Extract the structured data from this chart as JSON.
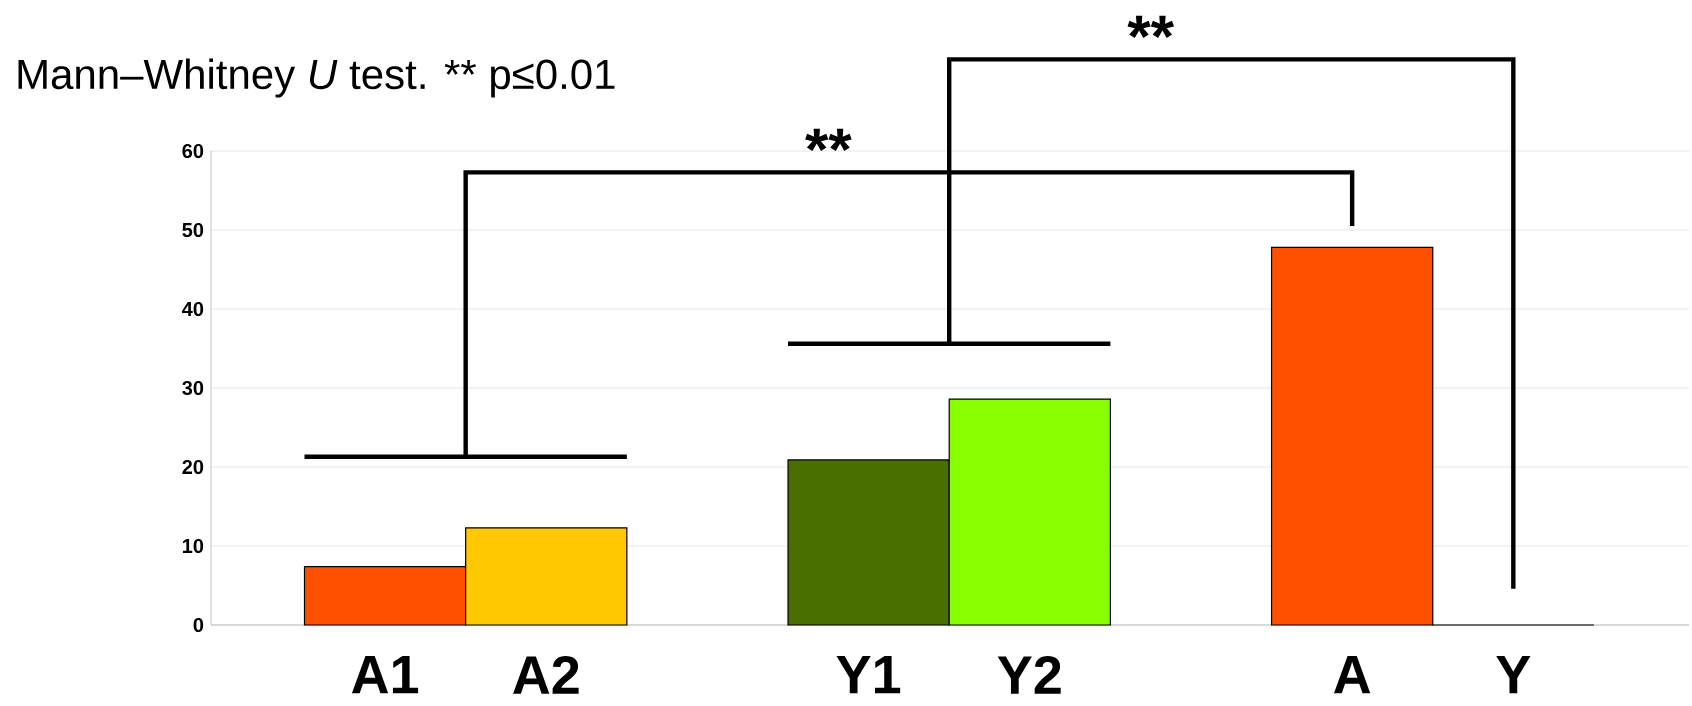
{
  "chart_data": {
    "type": "bar",
    "title": "Mann–Whitney *U* test. ** p≤0.01",
    "categories": [
      "A1",
      "A2",
      null,
      "Y1",
      "Y2",
      null,
      "A",
      "Y"
    ],
    "values": [
      7.4,
      12.3,
      null,
      20.9,
      28.6,
      null,
      47.8,
      0
    ],
    "colors": [
      "#ff5000",
      "#ffc800",
      "#ffffff",
      "#4a6f00",
      "#88ff00",
      "#ffffff",
      "#ff5000",
      "#88ff00"
    ],
    "ylim": [
      0,
      60
    ],
    "yticks": [
      0,
      10,
      20,
      30,
      40,
      50,
      60
    ],
    "grid": "y",
    "annotations": [
      "**",
      "**"
    ]
  }
}
